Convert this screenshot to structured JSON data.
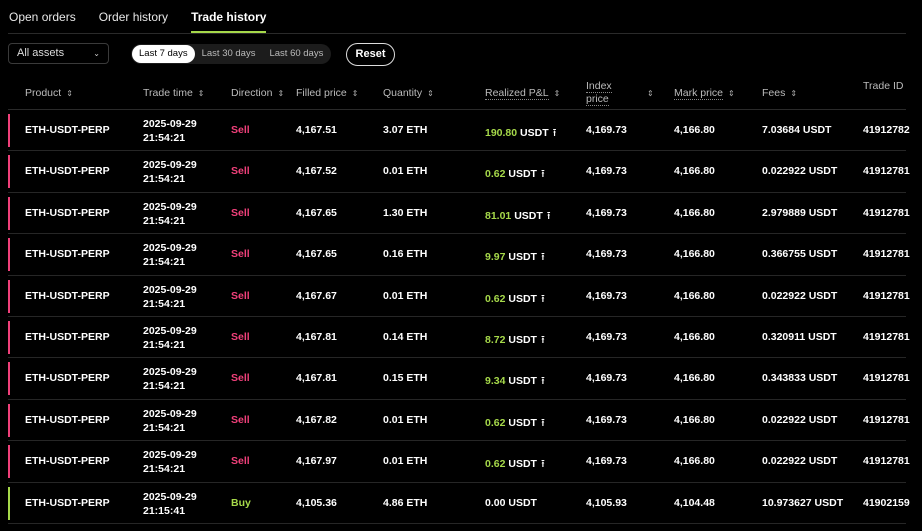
{
  "tabs": [
    "Open orders",
    "Order history",
    "Trade history"
  ],
  "active_tab": 2,
  "filters": {
    "assets": "All assets",
    "ranges": [
      "Last 7 days",
      "Last 30 days",
      "Last 60 days"
    ],
    "active_range": 0,
    "reset": "Reset"
  },
  "columns": {
    "product": "Product",
    "trade_time": "Trade time",
    "direction": "Direction",
    "filled_price": "Filled price",
    "quantity": "Quantity",
    "pnl": "Realized P&L",
    "index_price": "Index price",
    "mark_price": "Mark price",
    "fees": "Fees",
    "trade_id": "Trade ID"
  },
  "colors": {
    "sell": "#f0407a",
    "buy": "#a6d94a",
    "pnl": "#a6d94a"
  },
  "rows": [
    {
      "product": "ETH-USDT-PERP",
      "date": "2025-09-29",
      "time": "21:54:21",
      "direction": "Sell",
      "filled": "4,167.51",
      "qty": "3.07 ETH",
      "pnl": "190.80",
      "pnl_unit": "USDT",
      "share": true,
      "index": "4,169.73",
      "mark": "4,166.80",
      "fees": "7.03684 USDT",
      "id": "41912782"
    },
    {
      "product": "ETH-USDT-PERP",
      "date": "2025-09-29",
      "time": "21:54:21",
      "direction": "Sell",
      "filled": "4,167.52",
      "qty": "0.01 ETH",
      "pnl": "0.62",
      "pnl_unit": "USDT",
      "share": true,
      "index": "4,169.73",
      "mark": "4,166.80",
      "fees": "0.022922 USDT",
      "id": "41912781"
    },
    {
      "product": "ETH-USDT-PERP",
      "date": "2025-09-29",
      "time": "21:54:21",
      "direction": "Sell",
      "filled": "4,167.65",
      "qty": "1.30 ETH",
      "pnl": "81.01",
      "pnl_unit": "USDT",
      "share": true,
      "index": "4,169.73",
      "mark": "4,166.80",
      "fees": "2.979889 USDT",
      "id": "41912781"
    },
    {
      "product": "ETH-USDT-PERP",
      "date": "2025-09-29",
      "time": "21:54:21",
      "direction": "Sell",
      "filled": "4,167.65",
      "qty": "0.16 ETH",
      "pnl": "9.97",
      "pnl_unit": "USDT",
      "share": true,
      "index": "4,169.73",
      "mark": "4,166.80",
      "fees": "0.366755 USDT",
      "id": "41912781"
    },
    {
      "product": "ETH-USDT-PERP",
      "date": "2025-09-29",
      "time": "21:54:21",
      "direction": "Sell",
      "filled": "4,167.67",
      "qty": "0.01 ETH",
      "pnl": "0.62",
      "pnl_unit": "USDT",
      "share": true,
      "index": "4,169.73",
      "mark": "4,166.80",
      "fees": "0.022922 USDT",
      "id": "41912781"
    },
    {
      "product": "ETH-USDT-PERP",
      "date": "2025-09-29",
      "time": "21:54:21",
      "direction": "Sell",
      "filled": "4,167.81",
      "qty": "0.14 ETH",
      "pnl": "8.72",
      "pnl_unit": "USDT",
      "share": true,
      "index": "4,169.73",
      "mark": "4,166.80",
      "fees": "0.320911 USDT",
      "id": "41912781"
    },
    {
      "product": "ETH-USDT-PERP",
      "date": "2025-09-29",
      "time": "21:54:21",
      "direction": "Sell",
      "filled": "4,167.81",
      "qty": "0.15 ETH",
      "pnl": "9.34",
      "pnl_unit": "USDT",
      "share": true,
      "index": "4,169.73",
      "mark": "4,166.80",
      "fees": "0.343833 USDT",
      "id": "41912781"
    },
    {
      "product": "ETH-USDT-PERP",
      "date": "2025-09-29",
      "time": "21:54:21",
      "direction": "Sell",
      "filled": "4,167.82",
      "qty": "0.01 ETH",
      "pnl": "0.62",
      "pnl_unit": "USDT",
      "share": true,
      "index": "4,169.73",
      "mark": "4,166.80",
      "fees": "0.022922 USDT",
      "id": "41912781"
    },
    {
      "product": "ETH-USDT-PERP",
      "date": "2025-09-29",
      "time": "21:54:21",
      "direction": "Sell",
      "filled": "4,167.97",
      "qty": "0.01 ETH",
      "pnl": "0.62",
      "pnl_unit": "USDT",
      "share": true,
      "index": "4,169.73",
      "mark": "4,166.80",
      "fees": "0.022922 USDT",
      "id": "41912781"
    },
    {
      "product": "ETH-USDT-PERP",
      "date": "2025-09-29",
      "time": "21:15:41",
      "direction": "Buy",
      "filled": "4,105.36",
      "qty": "4.86 ETH",
      "pnl": "0.00",
      "pnl_unit": "USDT",
      "share": false,
      "index": "4,105.93",
      "mark": "4,104.48",
      "fees": "10.973627 USDT",
      "id": "41902159"
    }
  ]
}
